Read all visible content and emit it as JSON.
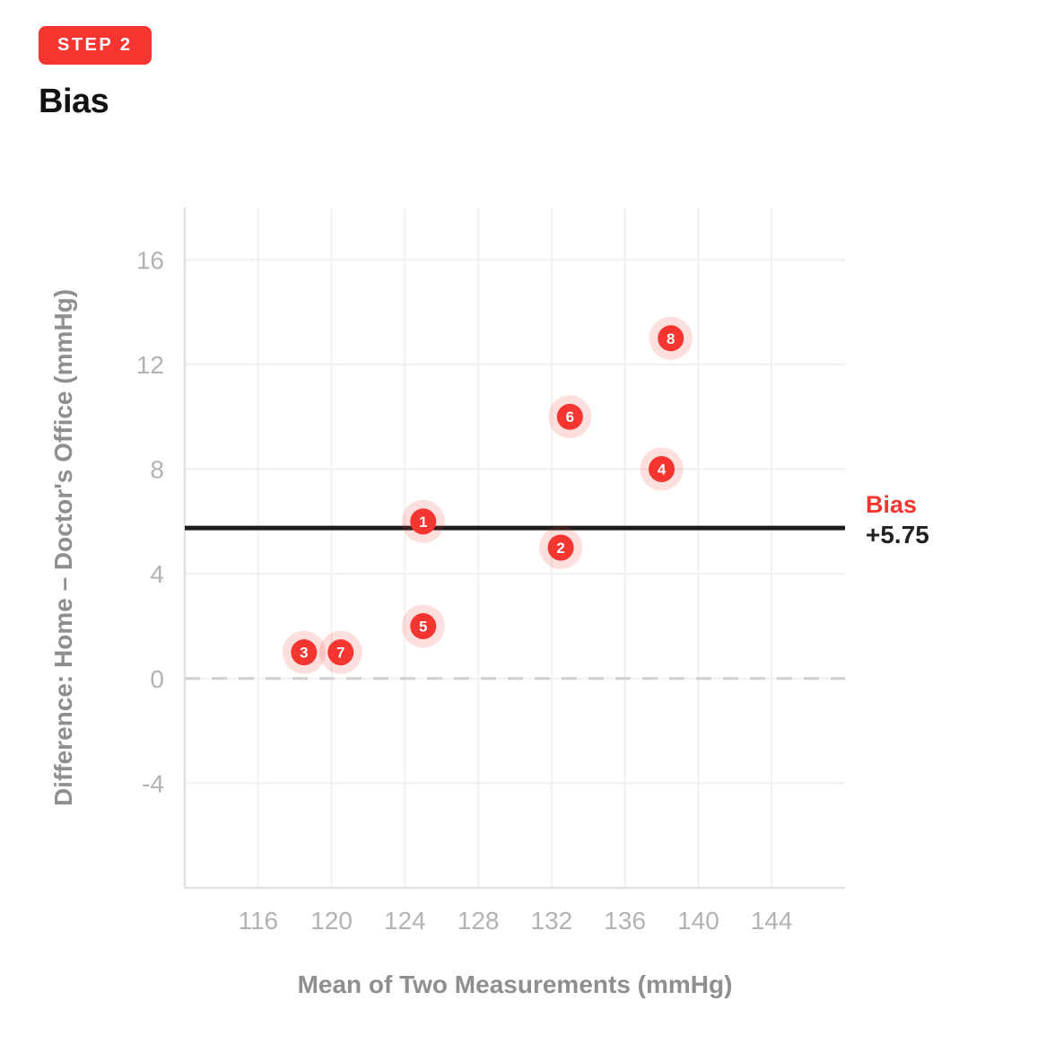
{
  "header": {
    "badge": "STEP 2",
    "title": "Bias"
  },
  "colors": {
    "accent_red": "#f43530",
    "halo_red_opacity": 0.16,
    "point_number_text": "#ffffff",
    "grid": "#f0f0f0",
    "axis_line": "#e2e2e2",
    "tick_text": "#b3b3b3",
    "axis_label_text": "#8f8f8f",
    "zero_dash": "#cfcfcf",
    "bias_line": "#1c1c1c",
    "bias_value_text": "#222222",
    "heading_text": "#121212",
    "badge_text": "#ffffff"
  },
  "chart_data": {
    "type": "scatter",
    "title": "Bias",
    "xlabel": "Mean of Two Measurements (mmHg)",
    "ylabel": "Difference: Home – Doctor's Office (mmHg)",
    "xlim": [
      112,
      148
    ],
    "ylim": [
      -8,
      18
    ],
    "xticks": [
      116,
      120,
      124,
      128,
      132,
      136,
      140,
      144
    ],
    "yticks": [
      -4,
      0,
      4,
      8,
      12,
      16
    ],
    "grid": true,
    "legend": "none",
    "zero_line": {
      "value": 0,
      "style": "dashed"
    },
    "bias_line": {
      "value": 5.75,
      "label": "Bias",
      "value_label": "+5.75",
      "style": "solid"
    },
    "points": [
      {
        "label": "1",
        "mean": 125,
        "diff": 6
      },
      {
        "label": "2",
        "mean": 132.5,
        "diff": 5
      },
      {
        "label": "3",
        "mean": 118.5,
        "diff": 1
      },
      {
        "label": "4",
        "mean": 138,
        "diff": 8
      },
      {
        "label": "5",
        "mean": 125,
        "diff": 2
      },
      {
        "label": "6",
        "mean": 133,
        "diff": 10
      },
      {
        "label": "7",
        "mean": 120.5,
        "diff": 1
      },
      {
        "label": "8",
        "mean": 138.5,
        "diff": 13
      }
    ]
  }
}
